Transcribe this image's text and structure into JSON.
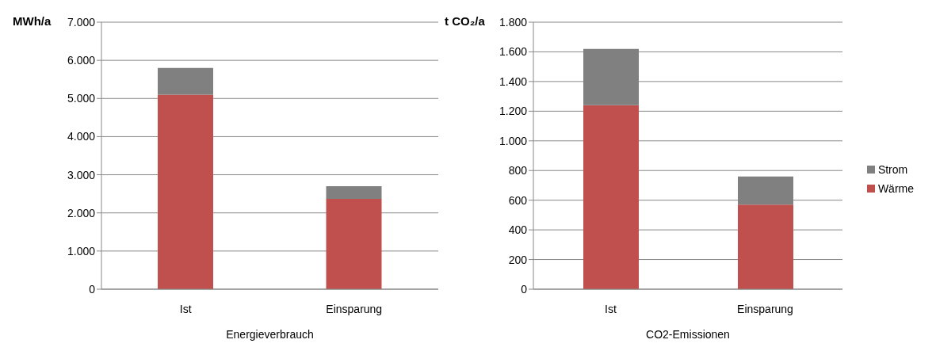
{
  "chart_data": [
    {
      "type": "bar",
      "stacked": true,
      "ylabel": "MWh/a",
      "xlabel": "Energieverbrauch",
      "categories": [
        "Ist",
        "Einsparung"
      ],
      "series": [
        {
          "color": "#c0504d",
          "values": [
            5100,
            2370
          ]
        },
        {
          "color": "#808080",
          "values": [
            700,
            330
          ]
        }
      ],
      "ylim": [
        0,
        7000
      ],
      "yticks": [
        0,
        {
          "value": 1000,
          "label": "1.000"
        },
        {
          "value": 2000,
          "label": "2.000"
        },
        {
          "value": 3000,
          "label": "3.000"
        },
        {
          "value": 4000,
          "label": "4.000"
        },
        {
          "value": 5000,
          "label": "5.000"
        },
        {
          "value": 6000,
          "label": "6.000"
        },
        {
          "value": 7000,
          "label": "7.000"
        }
      ],
      "grid": "y",
      "legend": false
    },
    {
      "type": "bar",
      "stacked": true,
      "ylabel": "t CO₂/a",
      "xlabel": "CO2-Emissionen",
      "categories": [
        "Ist",
        "Einsparung"
      ],
      "series": [
        {
          "name": "Wärme",
          "color": "#c0504d",
          "values": [
            1240,
            570
          ]
        },
        {
          "name": "Strom",
          "color": "#808080",
          "values": [
            380,
            190
          ]
        }
      ],
      "ylim": [
        0,
        1800
      ],
      "yticks": [
        0,
        200,
        400,
        600,
        800,
        {
          "value": 1000,
          "label": "1.000"
        },
        {
          "value": 1200,
          "label": "1.200"
        },
        {
          "value": 1400,
          "label": "1.400"
        },
        {
          "value": 1600,
          "label": "1.600"
        },
        {
          "value": 1800,
          "label": "1.800"
        }
      ],
      "grid": "y",
      "legend": "right"
    }
  ]
}
